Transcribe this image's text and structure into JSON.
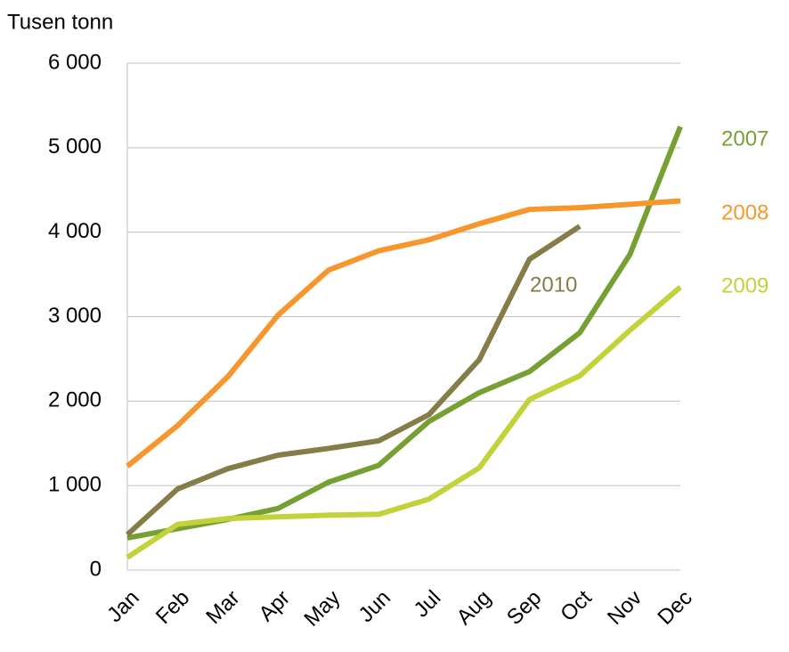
{
  "chart_data": {
    "type": "line",
    "y_label": "Tusen tonn",
    "categories": [
      "Jan",
      "Feb",
      "Mar",
      "Apr",
      "May",
      "Jun",
      "Jul",
      "Aug",
      "Sep",
      "Oct",
      "Nov",
      "Dec"
    ],
    "series": [
      {
        "name": "2007",
        "color": "#77a033",
        "values": [
          380,
          490,
          600,
          730,
          1040,
          1240,
          1760,
          2100,
          2350,
          2810,
          3740,
          5250
        ]
      },
      {
        "name": "2008",
        "color": "#f7962d",
        "values": [
          1230,
          1710,
          2290,
          3020,
          3550,
          3780,
          3910,
          4100,
          4270,
          4290,
          4330,
          4370
        ]
      },
      {
        "name": "2009",
        "color": "#c3d23a",
        "values": [
          150,
          540,
          610,
          630,
          650,
          660,
          840,
          1210,
          2020,
          2300,
          2840,
          3350
        ]
      },
      {
        "name": "2010",
        "color": "#857d48",
        "values": [
          420,
          960,
          1200,
          1360,
          1440,
          1530,
          1840,
          2490,
          3680,
          4070,
          null,
          null
        ]
      }
    ],
    "ylim": [
      0,
      6000
    ],
    "yticks": [
      0,
      {
        "value": 1000,
        "label": "1 000"
      },
      {
        "value": 2000,
        "label": "2 000"
      },
      {
        "value": 3000,
        "label": "3 000"
      },
      {
        "value": 4000,
        "label": "4 000"
      },
      {
        "value": 5000,
        "label": "5 000"
      },
      {
        "value": 6000,
        "label": "6 000"
      }
    ],
    "grid": true
  }
}
